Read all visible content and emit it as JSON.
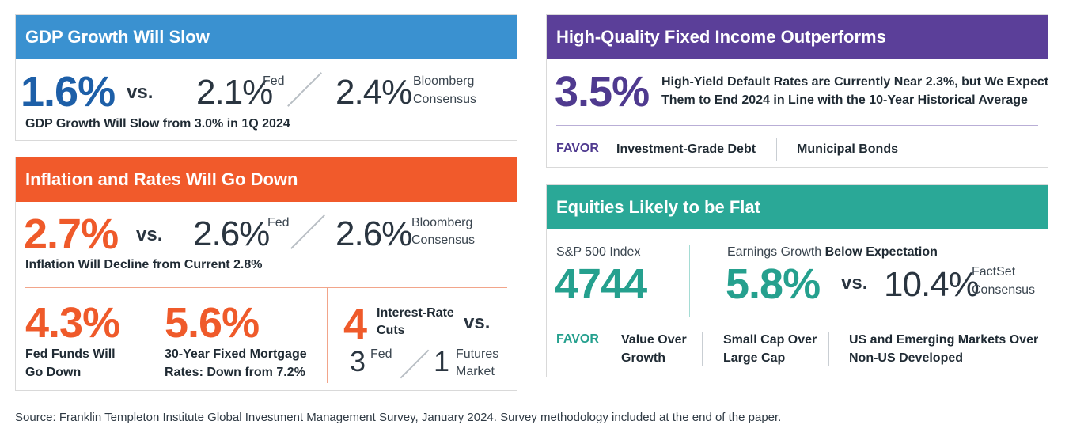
{
  "colors": {
    "blue": "#3a91d0",
    "orange": "#f15a2b",
    "purple": "#5b3f99",
    "teal": "#2aa897",
    "dark_blue": "#1d5fa8",
    "red_orange": "#ef5a2a",
    "deep_purple": "#4f3a8f",
    "teal_text": "#25a08e"
  },
  "gdp": {
    "title": "GDP Growth Will Slow",
    "value": "1.6%",
    "vs": "vs.",
    "fed_value": "2.1%",
    "fed_label": "Fed",
    "consensus_value": "2.4%",
    "consensus_label_1": "Bloomberg",
    "consensus_label_2": "Consensus",
    "note": "GDP Growth Will Slow from 3.0% in 1Q 2024"
  },
  "inflation": {
    "title": "Inflation and Rates Will Go Down",
    "value": "2.7%",
    "vs": "vs.",
    "fed_value": "2.6%",
    "fed_label": "Fed",
    "consensus_value": "2.6%",
    "consensus_label_1": "Bloomberg",
    "consensus_label_2": "Consensus",
    "note": "Inflation Will Decline from Current 2.8%",
    "fed_funds_value": "4.3%",
    "fed_funds_line1": "Fed Funds Will",
    "fed_funds_line2": "Go Down",
    "mortgage_value": "5.6%",
    "mortgage_line1": "30-Year Fixed Mortgage",
    "mortgage_line2": "Rates: Down from 7.2%",
    "cuts_value": "4",
    "cuts_line1": "Interest-Rate",
    "cuts_line2": "Cuts",
    "cuts_vs": "vs.",
    "cuts_fed_value": "3",
    "cuts_fed_label": "Fed",
    "cuts_futures_value": "1",
    "cuts_futures_line1": "Futures",
    "cuts_futures_line2": "Market"
  },
  "fixed_income": {
    "title": "High-Quality Fixed Income Outperforms",
    "value": "3.5%",
    "desc_line1": "High-Yield Default Rates are Currently Near 2.3%, but We Expect",
    "desc_line2": "Them to End 2024 in Line with the 10-Year Historical Average",
    "favor_label": "FAVOR",
    "favor_1": "Investment-Grade Debt",
    "favor_2": "Municipal Bonds"
  },
  "equities": {
    "title": "Equities Likely to be Flat",
    "index_label": "S&P 500 Index",
    "index_value": "4744",
    "earnings_label_prefix": "Earnings Growth",
    "earnings_label_bold": "Below Expectation",
    "earnings_value": "5.8%",
    "vs": "vs.",
    "factset_value": "10.4%",
    "factset_label_1": "FactSet",
    "factset_label_2": "Consensus",
    "favor_label": "FAVOR",
    "favor_1_line1": "Value Over",
    "favor_1_line2": "Growth",
    "favor_2_line1": "Small Cap Over",
    "favor_2_line2": "Large Cap",
    "favor_3_line1": "US and Emerging Markets Over",
    "favor_3_line2": "Non-US Developed"
  },
  "source": "Source: Franklin Templeton Institute Global Investment Management Survey, January 2024. Survey methodology included at the end of the paper."
}
